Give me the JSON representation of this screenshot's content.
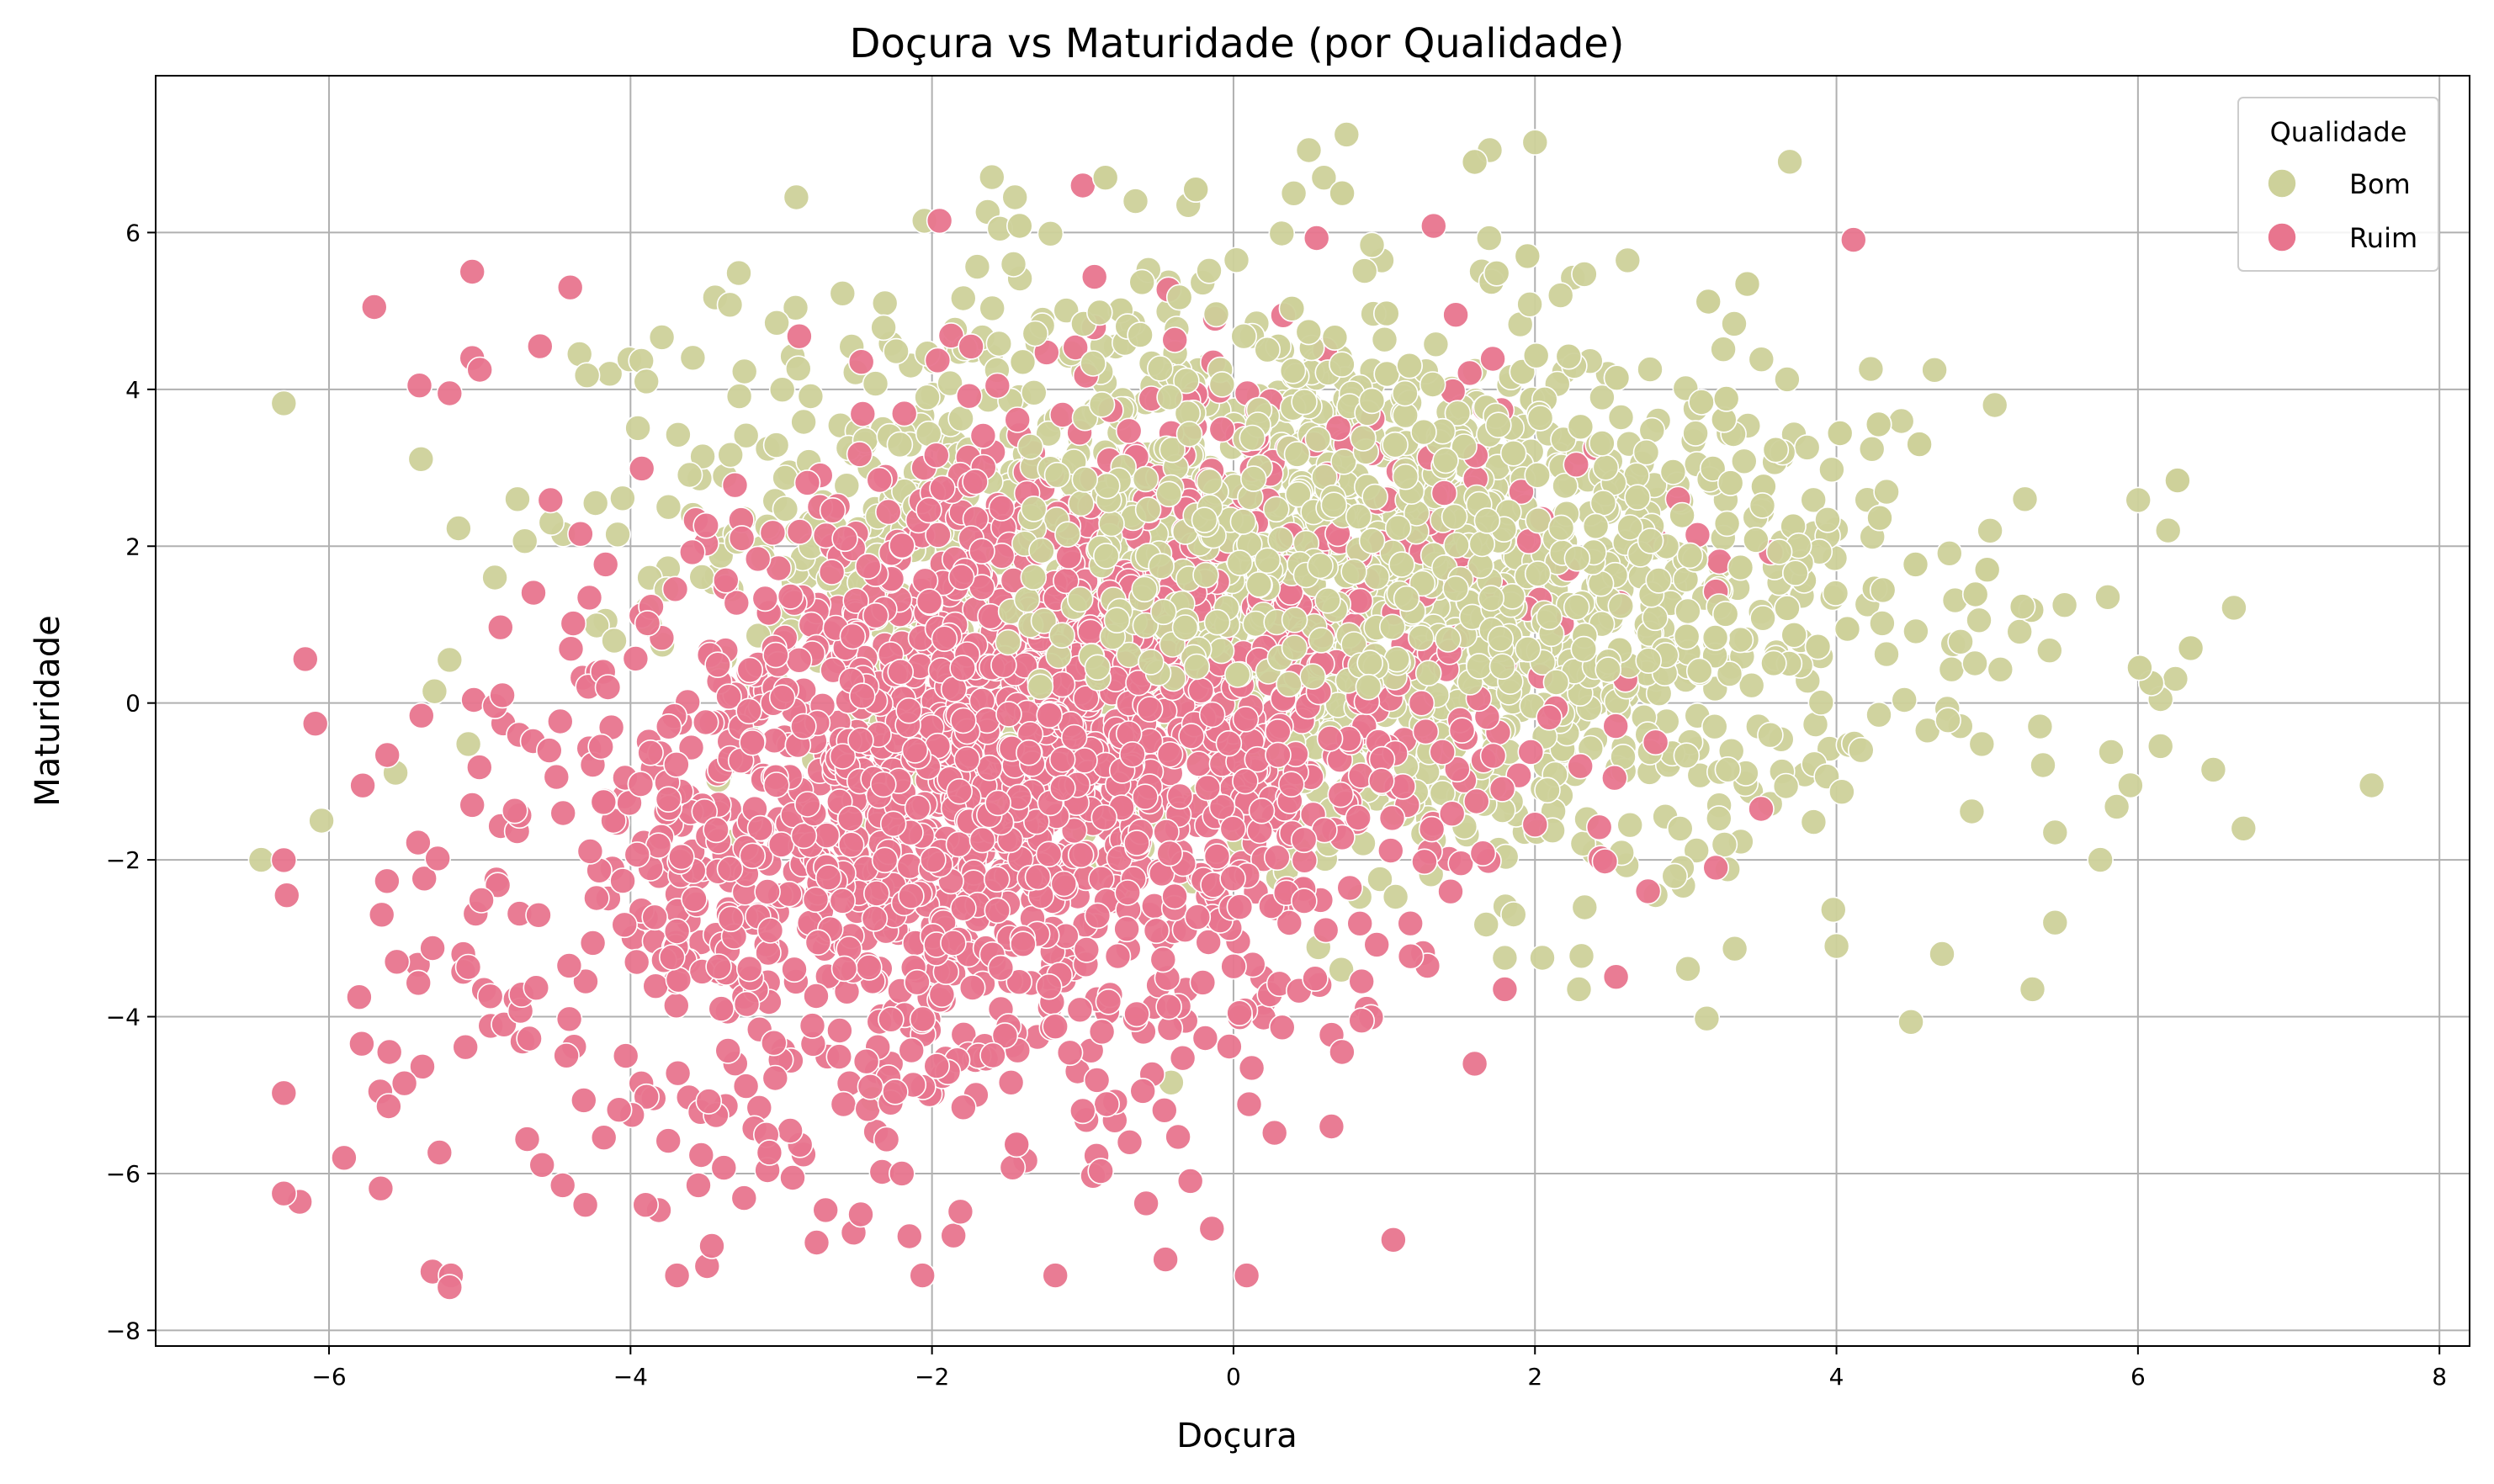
{
  "chart_data": {
    "type": "scatter",
    "title": "Doçura vs Maturidade (por Qualidade)",
    "xlabel": "Doçura",
    "ylabel": "Maturidade",
    "xlim": [
      -7.15,
      8.2
    ],
    "ylim": [
      -8.2,
      8.0
    ],
    "xticks": [
      -6,
      -4,
      -2,
      0,
      2,
      4,
      6,
      8
    ],
    "yticks": [
      -8,
      -6,
      -4,
      -2,
      0,
      2,
      4,
      6
    ],
    "xtick_labels": [
      "−6",
      "−4",
      "−2",
      "0",
      "2",
      "4",
      "6",
      "8"
    ],
    "ytick_labels": [
      "−8",
      "−6",
      "−4",
      "−2",
      "0",
      "2",
      "4",
      "6"
    ],
    "grid": true,
    "legend": {
      "title": "Qualidade",
      "placement": "top-right"
    },
    "series": [
      {
        "name": "Bom",
        "color": "#cdd19a",
        "cluster": {
          "mean_x": 0.55,
          "mean_y": 1.6,
          "sd_x": 1.9,
          "sd_y": 1.75,
          "corr": -0.2,
          "n": 2000
        },
        "points": [
          [
            -6.45,
            -2.0
          ],
          [
            -6.05,
            -1.5
          ],
          [
            -5.2,
            0.55
          ],
          [
            -5.3,
            0.15
          ],
          [
            -4.9,
            1.6
          ],
          [
            -4.75,
            2.6
          ],
          [
            -2.9,
            6.45
          ],
          [
            -2.05,
            6.15
          ],
          [
            -1.55,
            6.05
          ],
          [
            -1.45,
            6.45
          ],
          [
            -0.85,
            6.7
          ],
          [
            -0.65,
            6.4
          ],
          [
            -0.3,
            6.35
          ],
          [
            -0.25,
            6.55
          ],
          [
            0.6,
            6.7
          ],
          [
            0.75,
            7.25
          ],
          [
            1.6,
            6.9
          ],
          [
            1.7,
            7.05
          ],
          [
            2.0,
            7.15
          ],
          [
            1.95,
            5.7
          ],
          [
            0.5,
            7.05
          ],
          [
            0.4,
            6.5
          ],
          [
            7.55,
            -1.05
          ],
          [
            6.7,
            -1.6
          ],
          [
            6.5,
            -0.85
          ],
          [
            6.35,
            0.7
          ],
          [
            6.2,
            2.2
          ],
          [
            6.15,
            0.05
          ],
          [
            6.15,
            -0.55
          ],
          [
            5.95,
            -1.05
          ],
          [
            5.8,
            1.35
          ],
          [
            5.75,
            -2.0
          ],
          [
            5.3,
            -3.65
          ],
          [
            5.45,
            -2.8
          ],
          [
            5.45,
            -1.65
          ],
          [
            5.25,
            2.6
          ],
          [
            5.05,
            3.8
          ],
          [
            4.55,
            3.3
          ],
          [
            4.0,
            -3.1
          ],
          [
            4.7,
            -3.2
          ],
          [
            1.8,
            -3.25
          ],
          [
            2.8,
            -2.45
          ],
          [
            5.35,
            -0.3
          ],
          [
            5.0,
            1.7
          ]
        ]
      },
      {
        "name": "Ruim",
        "color": "#e8758e",
        "cluster": {
          "mean_x": -1.5,
          "mean_y": -0.9,
          "sd_x": 1.55,
          "sd_y": 2.15,
          "corr": 0.3,
          "n": 2000
        },
        "points": [
          [
            -5.2,
            -7.45
          ],
          [
            -5.9,
            -5.8
          ],
          [
            -5.8,
            -3.75
          ],
          [
            -5.65,
            -2.7
          ],
          [
            -5.55,
            -3.3
          ],
          [
            -5.5,
            -4.85
          ],
          [
            -5.6,
            -4.45
          ],
          [
            -5.7,
            5.05
          ],
          [
            -5.4,
            4.05
          ],
          [
            -5.2,
            3.95
          ],
          [
            -5.05,
            5.5
          ],
          [
            -5.05,
            4.4
          ],
          [
            -5.0,
            4.25
          ],
          [
            -4.4,
            5.3
          ],
          [
            -4.6,
            4.55
          ],
          [
            -3.9,
            -6.4
          ],
          [
            -3.55,
            -6.15
          ],
          [
            -4.3,
            -6.4
          ],
          [
            -4.45,
            -6.15
          ],
          [
            -2.15,
            -6.8
          ],
          [
            -2.2,
            -6.0
          ],
          [
            -1.0,
            6.6
          ],
          [
            -1.95,
            6.15
          ],
          [
            -1.0,
            -5.2
          ],
          [
            0.65,
            -5.4
          ],
          [
            0.72,
            -4.45
          ],
          [
            1.6,
            -4.6
          ],
          [
            1.8,
            -3.65
          ],
          [
            0.85,
            -4.05
          ],
          [
            0.85,
            -3.55
          ],
          [
            2.4,
            3.25
          ],
          [
            2.95,
            2.6
          ],
          [
            3.5,
            -1.35
          ],
          [
            3.2,
            -2.1
          ],
          [
            2.75,
            -2.4
          ],
          [
            2.8,
            -0.5
          ],
          [
            2.6,
            0.3
          ],
          [
            1.95,
            1.2
          ],
          [
            2.0,
            -1.55
          ],
          [
            -4.15,
            0.2
          ],
          [
            -5.05,
            -1.3
          ],
          [
            -4.85,
            0.1
          ]
        ]
      }
    ]
  }
}
